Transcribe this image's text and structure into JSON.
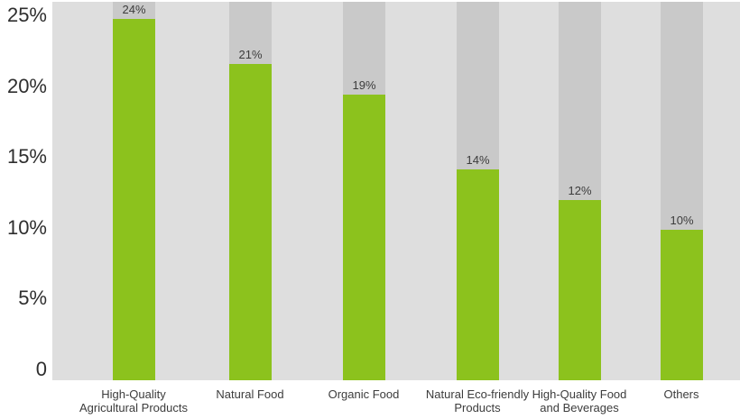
{
  "colors": {
    "bar": "#8cc21d",
    "band_background": "#c9c9c9",
    "plot_background": "#dedede",
    "page_background": "#ffffff",
    "tick_text": "#2e2e2e",
    "label_text": "#3c3c3c"
  },
  "chart_data": {
    "type": "bar",
    "title": "",
    "xlabel": "",
    "ylabel": "",
    "grid": false,
    "legend_position": "none",
    "categories": [
      "High-Quality Agricultural Products",
      "Natural Food",
      "Organic Food",
      "Natural Eco-friendly Products",
      "High-Quality Food and Beverages",
      "Others"
    ],
    "x_labels": [
      "High-Quality\nAgricultural Products",
      "Natural Food",
      "Organic Food",
      "Natural Eco-friendly\nProducts",
      "High-Quality Food\nand Beverages",
      "Others"
    ],
    "values": [
      24,
      21,
      19,
      14,
      12,
      10
    ],
    "value_labels": [
      "24%",
      "21%",
      "19%",
      "14%",
      "12%",
      "10%"
    ],
    "y_ticks": [
      "25%",
      "20%",
      "15%",
      "10%",
      "5%",
      "0"
    ],
    "y_tick_values": [
      25,
      20,
      15,
      10,
      5,
      0
    ],
    "ylim": [
      0,
      26
    ],
    "background_bands_full_height": true
  }
}
